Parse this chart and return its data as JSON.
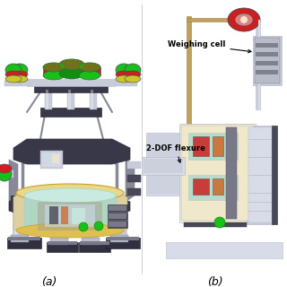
{
  "background_color": "#ffffff",
  "fig_width": 3.2,
  "fig_height": 3.2,
  "fig_dpi": 100,
  "label_a": "(a)",
  "label_b": "(b)",
  "annotation_weighing_cell": "Weighing cell",
  "annotation_2dof": "2-DOF flexure",
  "colors": {
    "frame_gray": "#888898",
    "light_gray": "#b8bcc8",
    "silver": "#c8ccd8",
    "pale_silver": "#d8dce8",
    "gold": "#c8a030",
    "light_gold": "#ddc050",
    "pale_gold": "#e8d888",
    "teal": "#a8d8c8",
    "pale_teal": "#c8eae0",
    "green_bright": "#18c018",
    "green_dark": "#109010",
    "red_bright": "#cc2020",
    "red_dark": "#881818",
    "dark_gray": "#484858",
    "darker_gray": "#303040",
    "black": "#181820",
    "white": "#ffffff",
    "cream": "#f0e8c8",
    "off_white": "#f4f0e4",
    "light_blue": "#c8dce8",
    "beige": "#ddd0a0",
    "tan": "#c8b878",
    "orange": "#d06020",
    "yellow_green": "#c8c828",
    "warm_gray": "#a8a090",
    "dark_panel": "#383848",
    "mid_gray": "#787888"
  }
}
